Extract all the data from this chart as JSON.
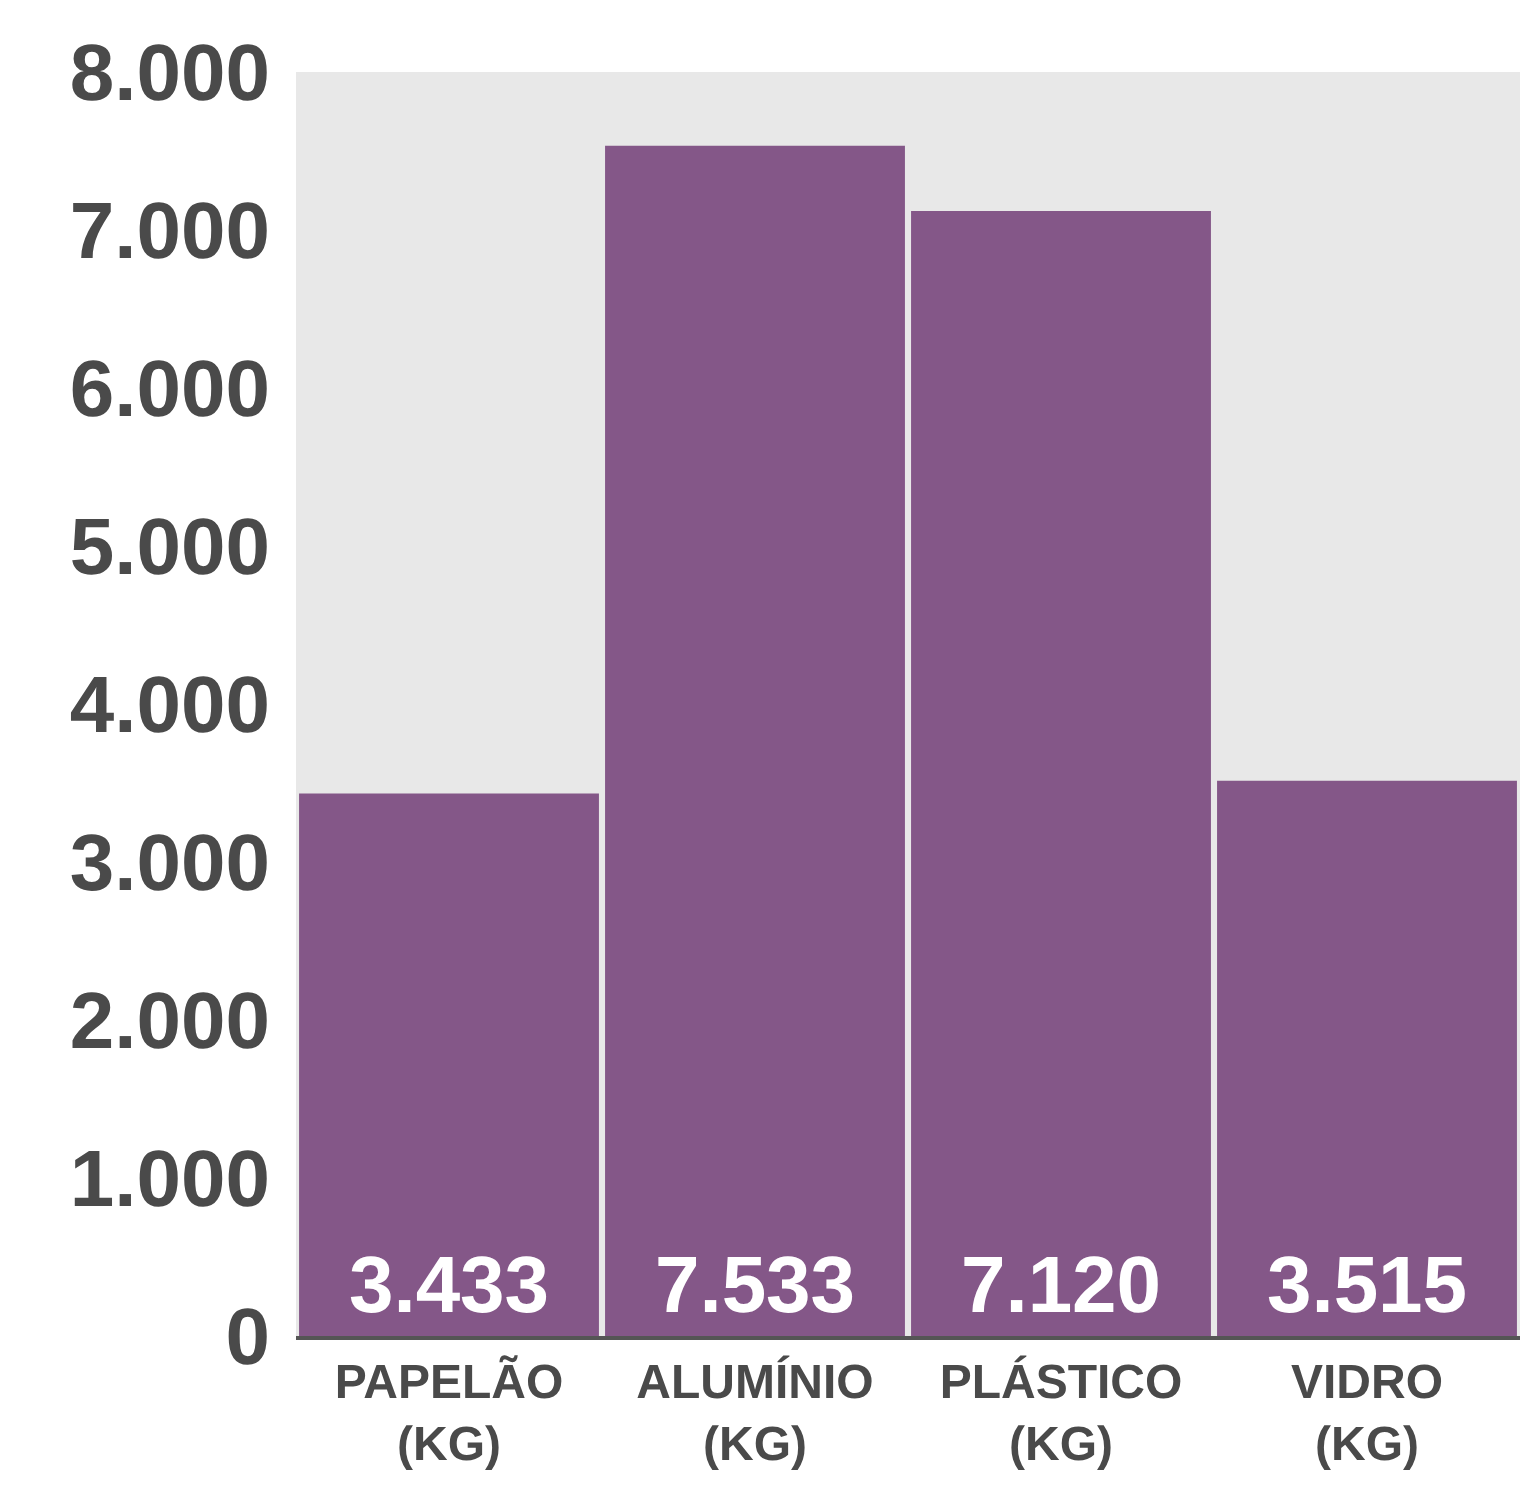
{
  "chart_data": {
    "type": "bar",
    "categories": [
      "PAPELÃO\n(KG)",
      "ALUMÍNIO\n(KG)",
      "PLÁSTICO\n(KG)",
      "VIDRO\n(KG)"
    ],
    "values": [
      3433,
      7533,
      7120,
      3515
    ],
    "value_labels": [
      "3.433",
      "7.533",
      "7.120",
      "3.515"
    ],
    "color": "#845788",
    "ylim": [
      0,
      8000
    ],
    "yticks": [
      {
        "value": 0,
        "label": "0"
      },
      {
        "value": 1000,
        "label": "1.000"
      },
      {
        "value": 2000,
        "label": "2.000"
      },
      {
        "value": 3000,
        "label": "3.000"
      },
      {
        "value": 4000,
        "label": "4.000"
      },
      {
        "value": 5000,
        "label": "5.000"
      },
      {
        "value": 6000,
        "label": "6.000"
      },
      {
        "value": 7000,
        "label": "7.000"
      },
      {
        "value": 8000,
        "label": "8.000"
      }
    ],
    "grid": false
  }
}
